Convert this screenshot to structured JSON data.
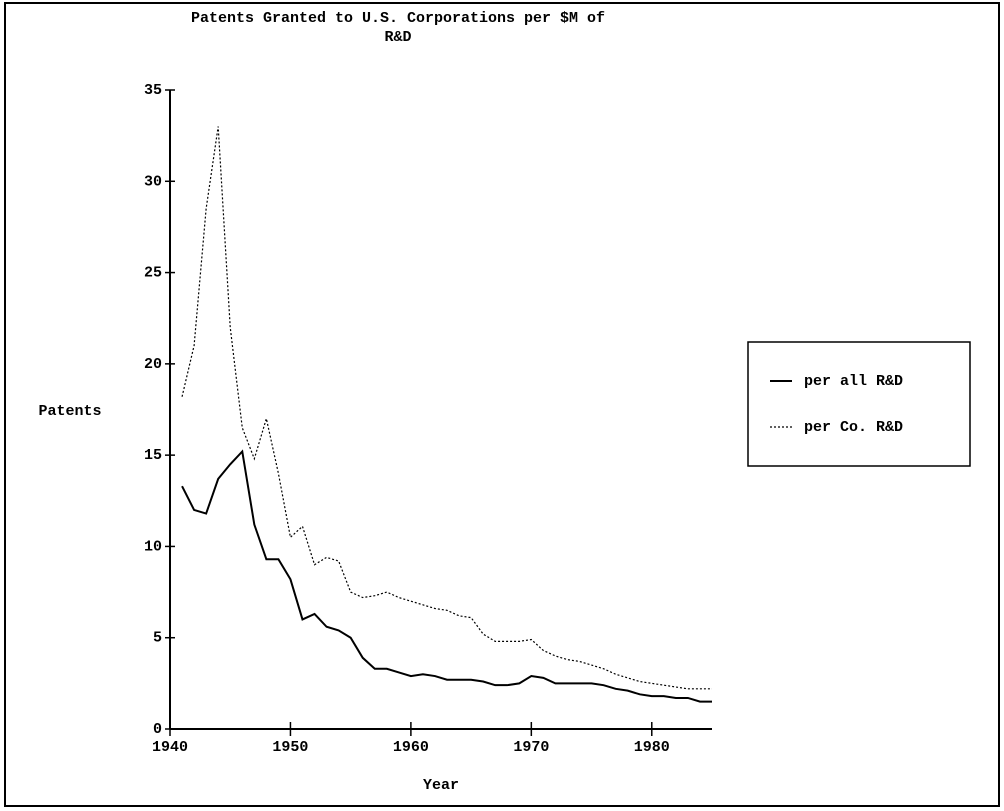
{
  "chart_data": {
    "type": "line",
    "title": [
      "Patents Granted to U.S. Corporations per $M of",
      "R&D"
    ],
    "x_label": "Year",
    "y_label": "Patents",
    "x": [
      1941,
      1942,
      1943,
      1944,
      1945,
      1946,
      1947,
      1948,
      1949,
      1950,
      1951,
      1952,
      1953,
      1954,
      1955,
      1956,
      1957,
      1958,
      1959,
      1960,
      1961,
      1962,
      1963,
      1964,
      1965,
      1966,
      1967,
      1968,
      1969,
      1970,
      1971,
      1972,
      1973,
      1974,
      1975,
      1976,
      1977,
      1978,
      1979,
      1980,
      1981,
      1982,
      1983,
      1984,
      1985
    ],
    "series": [
      {
        "name": "per all R&D",
        "color": "#000000",
        "dash": "solid",
        "values": [
          13.3,
          12.0,
          11.8,
          13.7,
          14.5,
          15.2,
          11.2,
          9.3,
          9.3,
          8.2,
          6.0,
          6.3,
          5.6,
          5.4,
          5.0,
          3.9,
          3.3,
          3.3,
          3.1,
          2.9,
          3.0,
          2.9,
          2.7,
          2.7,
          2.7,
          2.6,
          2.4,
          2.4,
          2.5,
          2.9,
          2.8,
          2.5,
          2.5,
          2.5,
          2.5,
          2.4,
          2.2,
          2.1,
          1.9,
          1.8,
          1.8,
          1.7,
          1.7,
          1.5,
          1.5
        ]
      },
      {
        "name": "per Co. R&D",
        "color": "#000000",
        "dash": "dotted",
        "values": [
          18.2,
          21.0,
          28.5,
          33.0,
          22.0,
          16.5,
          14.8,
          17.0,
          14.0,
          10.5,
          11.1,
          9.0,
          9.4,
          9.2,
          7.5,
          7.2,
          7.3,
          7.5,
          7.2,
          7.0,
          6.8,
          6.6,
          6.5,
          6.2,
          6.1,
          5.2,
          4.8,
          4.8,
          4.8,
          4.9,
          4.3,
          4.0,
          3.8,
          3.7,
          3.5,
          3.3,
          3.0,
          2.8,
          2.6,
          2.5,
          2.4,
          2.3,
          2.2,
          2.2,
          2.2
        ]
      }
    ],
    "xlim": [
      1940,
      1985
    ],
    "xticks": [
      1940,
      1950,
      1960,
      1970,
      1980
    ],
    "ylim": [
      0,
      35
    ],
    "yticks": [
      0,
      5,
      10,
      15,
      20,
      25,
      30,
      35
    ],
    "grid": false,
    "legend": "right"
  }
}
